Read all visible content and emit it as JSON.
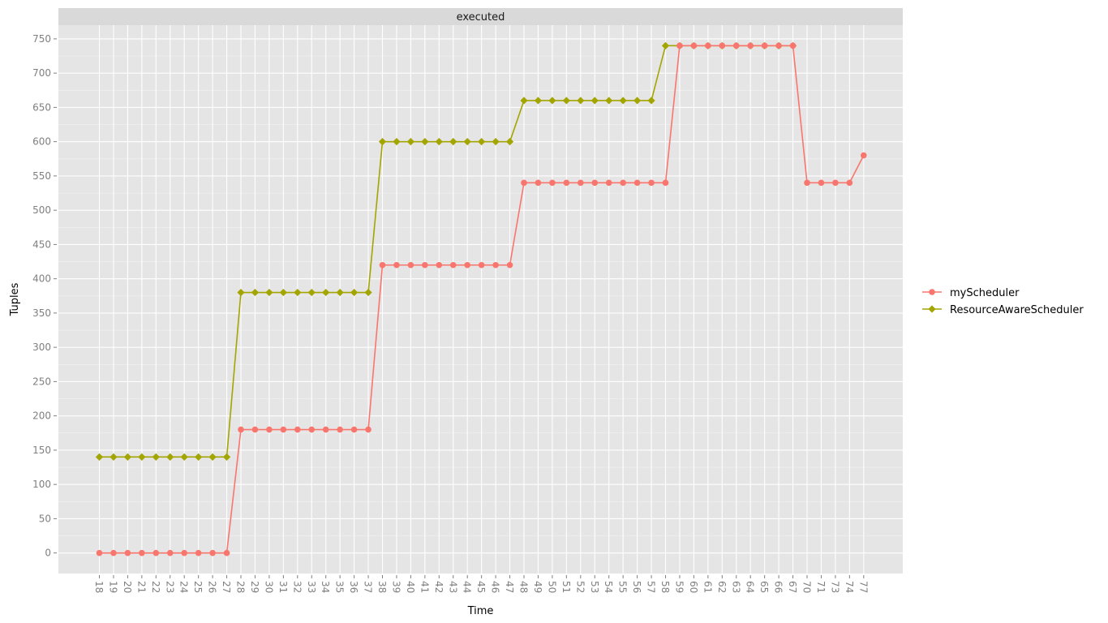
{
  "chart_data": {
    "type": "line",
    "title": "",
    "facet_label": "executed",
    "xlabel": "Time",
    "ylabel": "Tuples",
    "x": [
      18,
      19,
      20,
      21,
      22,
      23,
      24,
      25,
      26,
      27,
      28,
      29,
      30,
      31,
      32,
      33,
      34,
      35,
      36,
      37,
      38,
      39,
      40,
      41,
      42,
      43,
      44,
      45,
      46,
      47,
      48,
      49,
      50,
      51,
      52,
      53,
      54,
      55,
      56,
      57,
      58,
      59,
      60,
      61,
      62,
      63,
      64,
      65,
      66,
      67,
      70,
      71,
      73,
      74,
      77
    ],
    "ylim": [
      -30,
      770
    ],
    "yticks": [
      0,
      50,
      100,
      150,
      200,
      250,
      300,
      350,
      400,
      450,
      500,
      550,
      600,
      650,
      700,
      750
    ],
    "grid": true,
    "legend_position": "right",
    "series": [
      {
        "name": "myScheduler",
        "color": "#F8766D",
        "marker": "circle",
        "x": [
          18,
          19,
          20,
          21,
          22,
          23,
          24,
          25,
          26,
          27,
          28,
          29,
          30,
          31,
          32,
          33,
          34,
          35,
          36,
          37,
          38,
          39,
          40,
          41,
          42,
          43,
          44,
          45,
          46,
          47,
          48,
          49,
          50,
          51,
          52,
          53,
          54,
          55,
          56,
          57,
          58,
          59,
          60,
          61,
          62,
          63,
          64,
          65,
          66,
          67,
          70,
          71,
          73,
          74,
          77
        ],
        "values": [
          0,
          0,
          0,
          0,
          0,
          0,
          0,
          0,
          0,
          0,
          180,
          180,
          180,
          180,
          180,
          180,
          180,
          180,
          180,
          180,
          420,
          420,
          420,
          420,
          420,
          420,
          420,
          420,
          420,
          420,
          540,
          540,
          540,
          540,
          540,
          540,
          540,
          540,
          540,
          540,
          540,
          740,
          740,
          740,
          740,
          740,
          740,
          740,
          740,
          740,
          540,
          540,
          540,
          540,
          580
        ]
      },
      {
        "name": "ResourceAwareScheduler",
        "color": "#A3A500",
        "marker": "diamond",
        "x": [
          18,
          19,
          20,
          21,
          22,
          23,
          24,
          25,
          26,
          27,
          28,
          29,
          30,
          31,
          32,
          33,
          34,
          35,
          36,
          37,
          38,
          39,
          40,
          41,
          42,
          43,
          44,
          45,
          46,
          47,
          48,
          49,
          50,
          51,
          52,
          53,
          54,
          55,
          56,
          57,
          58,
          59,
          60,
          61,
          62,
          63,
          64,
          65,
          66,
          67
        ],
        "values": [
          140,
          140,
          140,
          140,
          140,
          140,
          140,
          140,
          140,
          140,
          380,
          380,
          380,
          380,
          380,
          380,
          380,
          380,
          380,
          380,
          600,
          600,
          600,
          600,
          600,
          600,
          600,
          600,
          600,
          600,
          660,
          660,
          660,
          660,
          660,
          660,
          660,
          660,
          660,
          660,
          740,
          740,
          740,
          740,
          740,
          740,
          740,
          740,
          740,
          740
        ]
      }
    ]
  }
}
